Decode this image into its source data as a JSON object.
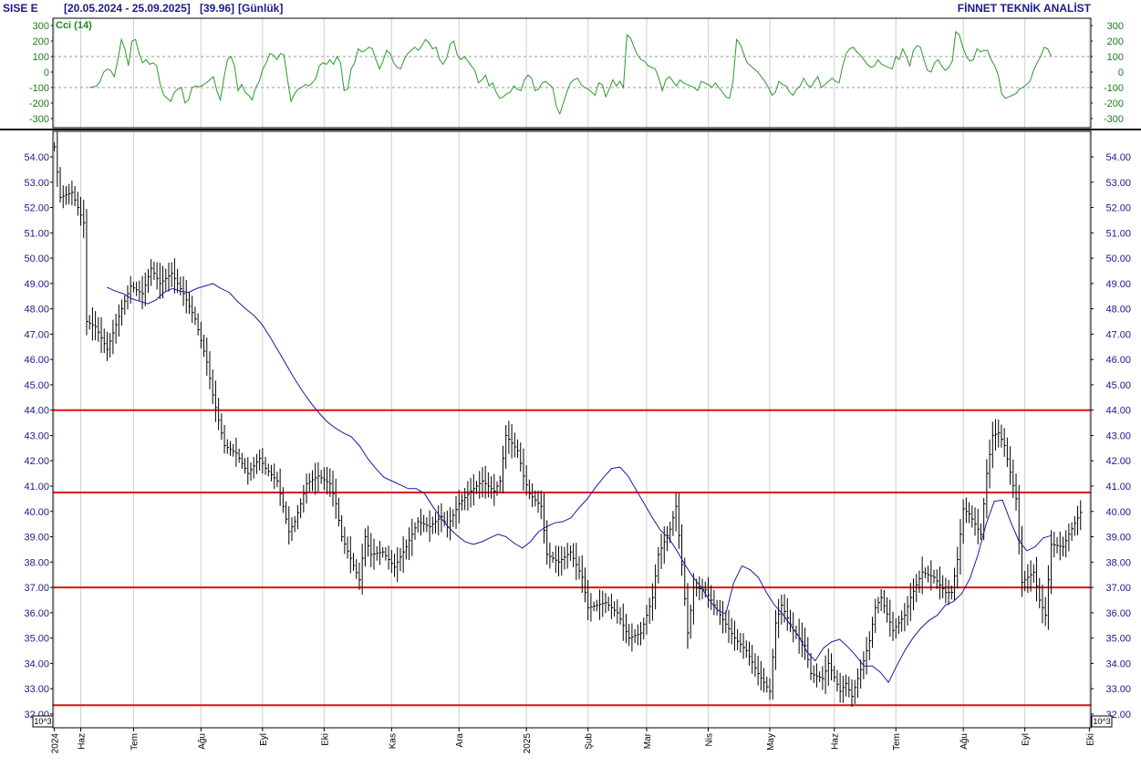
{
  "header": {
    "symbol": "SISE  E",
    "range": "[20.05.2024 - 25.09.2025]",
    "last": "[39.96]",
    "period": "[Günlük]",
    "brand": "FİNNET TEKNİK ANALİST"
  },
  "chart_data": [
    {
      "type": "line",
      "name": "Cci (14)",
      "ylim": [
        -300,
        300
      ],
      "yticks": [
        "300",
        "200",
        "100",
        "0",
        "-100",
        "-200",
        "-300"
      ],
      "ytick_values": [
        300,
        200,
        100,
        0,
        -100,
        -200,
        -300
      ],
      "reference_lines": [
        100,
        -100
      ],
      "color": "#2a9a2a",
      "x_index_range": [
        12,
        340
      ],
      "values": [
        -100,
        -95,
        -90,
        -60,
        0,
        20,
        10,
        -30,
        80,
        210,
        150,
        40,
        200,
        210,
        120,
        60,
        80,
        50,
        60,
        40,
        -80,
        -150,
        -170,
        -190,
        -130,
        -110,
        -100,
        -200,
        -180,
        -100,
        -90,
        -95,
        -85,
        -70,
        -50,
        -30,
        -120,
        -180,
        -40,
        80,
        100,
        40,
        -120,
        -80,
        -130,
        -150,
        -180,
        -100,
        -60,
        20,
        60,
        120,
        110,
        80,
        120,
        110,
        -50,
        -190,
        -140,
        -110,
        -100,
        -80,
        -90,
        -70,
        -40,
        40,
        60,
        50,
        80,
        50,
        100,
        60,
        -120,
        -110,
        20,
        60,
        150,
        130,
        140,
        160,
        150,
        80,
        20,
        70,
        140,
        120,
        60,
        30,
        20,
        80,
        120,
        140,
        160,
        140,
        170,
        210,
        190,
        150,
        160,
        80,
        50,
        90,
        180,
        200,
        110,
        80,
        100,
        70,
        40,
        10,
        -70,
        -50,
        -20,
        -90,
        -70,
        -130,
        -170,
        -160,
        -140,
        -130,
        -90,
        -110,
        -120,
        -50,
        -20,
        -40,
        -120,
        -110,
        -70,
        -60,
        -80,
        -100,
        -220,
        -270,
        -200,
        -130,
        -70,
        -50,
        -40,
        -80,
        -100,
        -110,
        -130,
        -150,
        -70,
        -80,
        -160,
        -110,
        -50,
        -90,
        -60,
        -100,
        240,
        220,
        160,
        110,
        80,
        70,
        40,
        30,
        20,
        -40,
        -120,
        -50,
        -30,
        -60,
        -90,
        -50,
        -70,
        -80,
        -90,
        -100,
        -120,
        -60,
        -70,
        -80,
        -100,
        -70,
        -100,
        -130,
        -160,
        -170,
        -60,
        210,
        180,
        120,
        60,
        40,
        20,
        0,
        -30,
        -60,
        -100,
        -150,
        -130,
        -60,
        -80,
        -90,
        -130,
        -150,
        -110,
        -90,
        -40,
        -80,
        -100,
        -60,
        -30,
        -100,
        -80,
        -60,
        -40,
        -60,
        -70,
        40,
        120,
        150,
        160,
        130,
        110,
        80,
        50,
        30,
        40,
        80,
        50,
        40,
        30,
        20,
        100,
        80,
        150,
        100,
        40,
        140,
        170,
        160,
        80,
        10,
        0,
        60,
        80,
        40,
        10,
        30,
        70,
        260,
        240,
        160,
        100,
        70,
        80,
        150,
        130,
        140,
        140,
        80,
        40,
        -20,
        -140,
        -170,
        -160,
        -150,
        -140,
        -110,
        -100,
        -80,
        -60,
        10,
        60,
        100,
        160,
        150,
        100
      ]
    },
    {
      "type": "ohlc",
      "ylim": [
        31.5,
        54.8
      ],
      "yticks": [
        "54.00",
        "53.00",
        "52.00",
        "51.00",
        "50.00",
        "49.00",
        "48.00",
        "47.00",
        "46.00",
        "45.00",
        "44.00",
        "43.00",
        "42.00",
        "41.00",
        "40.00",
        "39.00",
        "38.00",
        "37.00",
        "36.00",
        "35.00",
        "34.00",
        "33.00",
        "32.00"
      ],
      "ytick_values": [
        54,
        53,
        52,
        51,
        50,
        49,
        48,
        47,
        46,
        45,
        44,
        43,
        42,
        41,
        40,
        39,
        38,
        37,
        36,
        35,
        34,
        33,
        32
      ],
      "multiplier": "10^3",
      "x": [
        "2024",
        "Haz",
        "Tem",
        "Ağu",
        "Eyl",
        "Eki",
        "Kas",
        "Ara",
        "2025",
        "Şub",
        "Mar",
        "Nis",
        "May",
        "Haz",
        "Tem",
        "Ağu",
        "Eyl",
        "Eki"
      ],
      "x_index": [
        0,
        9,
        27,
        50,
        71,
        92,
        115,
        138,
        161,
        182,
        202,
        223,
        244,
        266,
        287,
        310,
        331,
        353
      ],
      "horizontal_lines": [
        44.0,
        40.75,
        37.0,
        32.35
      ],
      "horizontal_line_color": "#e01010",
      "price_color": "#000000",
      "ma_color": "#1a1aa0",
      "ma_x_index_range": [
        18,
        340
      ],
      "ma_values": [
        48.85,
        48.7,
        48.6,
        48.4,
        48.3,
        48.2,
        48.35,
        48.65,
        48.8,
        48.7,
        48.65,
        48.8,
        48.9,
        49.0,
        48.8,
        48.65,
        48.3,
        48.0,
        47.75,
        47.4,
        46.9,
        46.35,
        45.8,
        45.25,
        44.75,
        44.3,
        43.9,
        43.55,
        43.3,
        43.1,
        42.95,
        42.6,
        42.1,
        41.7,
        41.35,
        41.2,
        41.05,
        40.9,
        40.9,
        40.7,
        40.2,
        39.75,
        39.35,
        39.05,
        38.8,
        38.7,
        38.8,
        38.95,
        39.1,
        39.0,
        38.75,
        38.55,
        38.8,
        39.2,
        39.4,
        39.55,
        39.6,
        39.75,
        40.15,
        40.5,
        40.95,
        41.35,
        41.7,
        41.75,
        41.4,
        40.85,
        40.3,
        39.75,
        39.25,
        38.95,
        38.45,
        37.9,
        37.4,
        37.0,
        36.5,
        36.1,
        35.95,
        37.2,
        37.85,
        37.7,
        37.4,
        36.8,
        36.3,
        35.95,
        35.5,
        35.05,
        34.45,
        34.1,
        34.6,
        34.85,
        34.95,
        34.65,
        34.3,
        33.9,
        33.9,
        33.65,
        33.25,
        33.9,
        34.5,
        35.0,
        35.4,
        35.7,
        35.9,
        36.3,
        36.45,
        36.75,
        37.35,
        38.3,
        39.5,
        40.4,
        40.45,
        39.6,
        38.85,
        38.45,
        38.6,
        38.95,
        39.05
      ]
    }
  ]
}
